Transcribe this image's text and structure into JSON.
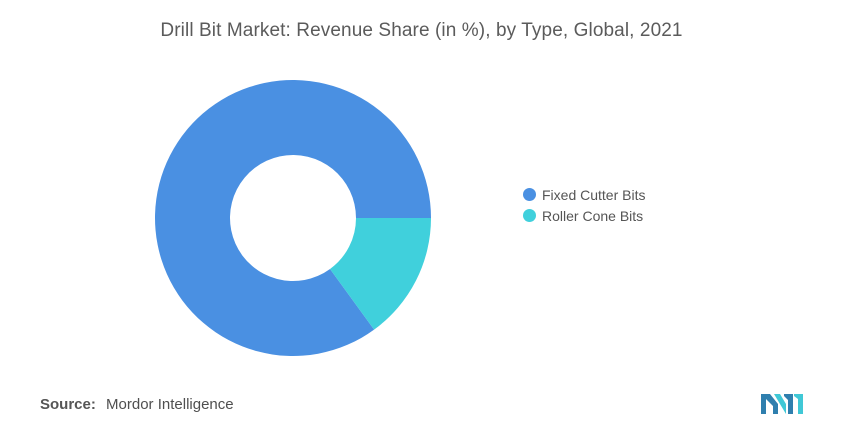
{
  "title": "Drill Bit Market: Revenue Share (in %), by Type, Global, 2021",
  "source": {
    "label": "Source:",
    "value": "Mordor Intelligence"
  },
  "logo": {
    "icon": "mordor-intelligence-logo",
    "colors": [
      "#2f7fae",
      "#40c8d6"
    ]
  },
  "chart_data": {
    "type": "pie",
    "subtype": "donut",
    "title": "Drill Bit Market: Revenue Share (in %), by Type, Global, 2021",
    "legend_position": "right",
    "series": [
      {
        "name": "Fixed Cutter Bits",
        "value": 85,
        "color": "#4a90e2"
      },
      {
        "name": "Roller Cone Bits",
        "value": 15,
        "color": "#40d0dc"
      }
    ]
  }
}
